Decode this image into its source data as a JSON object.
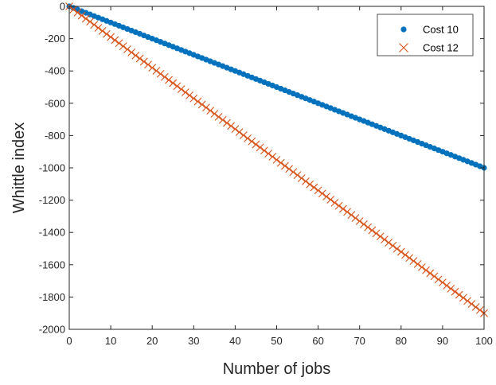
{
  "chart_data": {
    "type": "scatter",
    "title": "",
    "xlabel": "Number of jobs",
    "ylabel": "Whittle index",
    "xlim": [
      0,
      100
    ],
    "ylim": [
      -2000,
      0
    ],
    "xticks": [
      0,
      10,
      20,
      30,
      40,
      50,
      60,
      70,
      80,
      90,
      100
    ],
    "yticks": [
      0,
      -200,
      -400,
      -600,
      -800,
      -1000,
      -1200,
      -1400,
      -1600,
      -1800,
      -2000
    ],
    "xtick_labels": [
      "0",
      "10",
      "20",
      "30",
      "40",
      "50",
      "60",
      "70",
      "80",
      "90",
      "100"
    ],
    "ytick_labels": [
      "0",
      "-200",
      "-400",
      "-600",
      "-800",
      "-1000",
      "-1200",
      "-1400",
      "-1600",
      "-1800",
      "-2000"
    ],
    "grid": false,
    "legend_position": "top-right",
    "x": [
      0,
      1,
      2,
      3,
      4,
      5,
      6,
      7,
      8,
      9,
      10,
      11,
      12,
      13,
      14,
      15,
      16,
      17,
      18,
      19,
      20,
      21,
      22,
      23,
      24,
      25,
      26,
      27,
      28,
      29,
      30,
      31,
      32,
      33,
      34,
      35,
      36,
      37,
      38,
      39,
      40,
      41,
      42,
      43,
      44,
      45,
      46,
      47,
      48,
      49,
      50,
      51,
      52,
      53,
      54,
      55,
      56,
      57,
      58,
      59,
      60,
      61,
      62,
      63,
      64,
      65,
      66,
      67,
      68,
      69,
      70,
      71,
      72,
      73,
      74,
      75,
      76,
      77,
      78,
      79,
      80,
      81,
      82,
      83,
      84,
      85,
      86,
      87,
      88,
      89,
      90,
      91,
      92,
      93,
      94,
      95,
      96,
      97,
      98,
      99,
      100
    ],
    "series": [
      {
        "name": "Cost 10",
        "marker": "dot",
        "color": "#0072BD",
        "values": [
          0,
          -10,
          -20,
          -30,
          -40,
          -50,
          -60,
          -70,
          -80,
          -90,
          -100,
          -110,
          -120,
          -130,
          -140,
          -150,
          -160,
          -170,
          -180,
          -190,
          -200,
          -210,
          -220,
          -230,
          -240,
          -250,
          -260,
          -270,
          -280,
          -290,
          -300,
          -310,
          -320,
          -330,
          -340,
          -350,
          -360,
          -370,
          -380,
          -390,
          -400,
          -410,
          -420,
          -430,
          -440,
          -450,
          -460,
          -470,
          -480,
          -490,
          -500,
          -510,
          -520,
          -530,
          -540,
          -550,
          -560,
          -570,
          -580,
          -590,
          -600,
          -610,
          -620,
          -630,
          -640,
          -650,
          -660,
          -670,
          -680,
          -690,
          -700,
          -710,
          -720,
          -730,
          -740,
          -750,
          -760,
          -770,
          -780,
          -790,
          -800,
          -810,
          -820,
          -830,
          -840,
          -850,
          -860,
          -870,
          -880,
          -890,
          -900,
          -910,
          -920,
          -930,
          -940,
          -950,
          -960,
          -970,
          -980,
          -990,
          -1000
        ]
      },
      {
        "name": "Cost 12",
        "marker": "x",
        "color": "#D95319",
        "values": [
          0,
          -19,
          -38,
          -57,
          -76,
          -95,
          -114,
          -133,
          -152,
          -171,
          -190,
          -209,
          -228,
          -247,
          -266,
          -285,
          -304,
          -323,
          -342,
          -361,
          -380,
          -399,
          -418,
          -437,
          -456,
          -475,
          -494,
          -513,
          -532,
          -551,
          -570,
          -589,
          -608,
          -627,
          -646,
          -665,
          -684,
          -703,
          -722,
          -741,
          -760,
          -779,
          -798,
          -817,
          -836,
          -855,
          -874,
          -893,
          -912,
          -931,
          -950,
          -969,
          -988,
          -1007,
          -1026,
          -1045,
          -1064,
          -1083,
          -1102,
          -1121,
          -1140,
          -1159,
          -1178,
          -1197,
          -1216,
          -1235,
          -1254,
          -1273,
          -1292,
          -1311,
          -1330,
          -1349,
          -1368,
          -1387,
          -1406,
          -1425,
          -1444,
          -1463,
          -1482,
          -1501,
          -1520,
          -1539,
          -1558,
          -1577,
          -1596,
          -1615,
          -1634,
          -1653,
          -1672,
          -1691,
          -1710,
          -1729,
          -1748,
          -1767,
          -1786,
          -1805,
          -1824,
          -1843,
          -1862,
          -1881,
          -1900
        ]
      }
    ]
  }
}
